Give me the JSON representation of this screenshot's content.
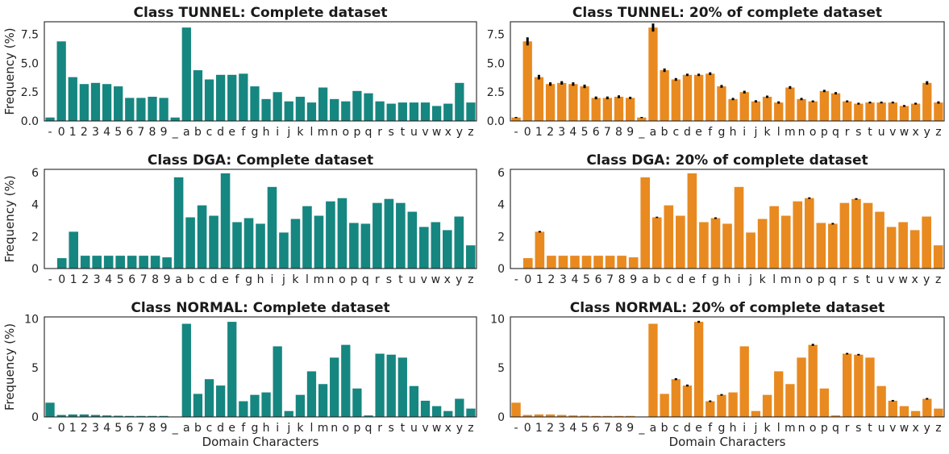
{
  "colors": {
    "complete": "#168680",
    "sample": "#e88a20",
    "error": "#000000"
  },
  "chart_data": [
    {
      "type": "bar",
      "title": "Class TUNNEL: Complete dataset",
      "ylabel": "Frequency (%)",
      "xlabel": "",
      "categories": [
        "-",
        "0",
        "1",
        "2",
        "3",
        "4",
        "5",
        "6",
        "7",
        "8",
        "9",
        "_",
        "a",
        "b",
        "c",
        "d",
        "e",
        "f",
        "g",
        "h",
        "i",
        "j",
        "k",
        "l",
        "m",
        "n",
        "o",
        "p",
        "q",
        "r",
        "s",
        "t",
        "u",
        "v",
        "w",
        "x",
        "y",
        "z"
      ],
      "values": [
        0.3,
        6.9,
        3.8,
        3.2,
        3.3,
        3.2,
        3.0,
        2.0,
        2.0,
        2.1,
        2.0,
        0.3,
        8.1,
        4.4,
        3.6,
        4.0,
        4.0,
        4.1,
        3.0,
        1.9,
        2.5,
        1.7,
        2.1,
        1.6,
        2.9,
        1.9,
        1.7,
        2.6,
        2.4,
        1.7,
        1.5,
        1.6,
        1.6,
        1.6,
        1.3,
        1.5,
        3.3,
        1.6
      ],
      "yticks": [
        "0.0",
        "2.5",
        "5.0",
        "7.5"
      ],
      "ytick_values": [
        0,
        2.5,
        5,
        7.5
      ],
      "ylim": [
        0,
        8.6
      ],
      "error_bars": false
    },
    {
      "type": "bar",
      "title": "Class TUNNEL: 20% of complete dataset",
      "ylabel": "",
      "xlabel": "",
      "categories": [
        "-",
        "0",
        "1",
        "2",
        "3",
        "4",
        "5",
        "6",
        "7",
        "8",
        "9",
        "_",
        "a",
        "b",
        "c",
        "d",
        "e",
        "f",
        "g",
        "h",
        "i",
        "j",
        "k",
        "l",
        "m",
        "n",
        "o",
        "p",
        "q",
        "r",
        "s",
        "t",
        "u",
        "v",
        "w",
        "x",
        "y",
        "z"
      ],
      "values": [
        0.3,
        6.9,
        3.8,
        3.2,
        3.3,
        3.2,
        3.0,
        2.0,
        2.0,
        2.1,
        2.0,
        0.3,
        8.1,
        4.4,
        3.6,
        4.0,
        4.0,
        4.1,
        3.0,
        1.9,
        2.5,
        1.7,
        2.1,
        1.6,
        2.9,
        1.9,
        1.7,
        2.6,
        2.4,
        1.7,
        1.5,
        1.6,
        1.6,
        1.6,
        1.3,
        1.5,
        3.3,
        1.6
      ],
      "errors": [
        0.05,
        0.35,
        0.2,
        0.15,
        0.15,
        0.15,
        0.15,
        0.12,
        0.12,
        0.12,
        0.1,
        0.05,
        0.35,
        0.15,
        0.12,
        0.1,
        0.1,
        0.12,
        0.12,
        0.1,
        0.12,
        0.1,
        0.1,
        0.1,
        0.12,
        0.1,
        0.08,
        0.1,
        0.1,
        0.08,
        0.08,
        0.08,
        0.08,
        0.08,
        0.08,
        0.08,
        0.15,
        0.1
      ],
      "yticks": [
        "0.0",
        "2.5",
        "5.0",
        "7.5"
      ],
      "ytick_values": [
        0,
        2.5,
        5,
        7.5
      ],
      "ylim": [
        0,
        8.6
      ],
      "error_bars": true
    },
    {
      "type": "bar",
      "title": "Class DGA: Complete dataset",
      "ylabel": "Frequency (%)",
      "xlabel": "",
      "categories": [
        "-",
        "0",
        "1",
        "2",
        "3",
        "4",
        "5",
        "6",
        "7",
        "8",
        "9",
        "a",
        "b",
        "c",
        "d",
        "e",
        "f",
        "g",
        "h",
        "i",
        "j",
        "k",
        "l",
        "m",
        "n",
        "o",
        "p",
        "q",
        "r",
        "s",
        "t",
        "u",
        "v",
        "w",
        "x",
        "y",
        "z"
      ],
      "values": [
        0,
        0.65,
        2.3,
        0.8,
        0.8,
        0.8,
        0.8,
        0.8,
        0.8,
        0.8,
        0.7,
        5.7,
        3.2,
        3.95,
        3.3,
        5.95,
        2.9,
        3.15,
        2.8,
        5.1,
        2.25,
        3.1,
        3.9,
        3.3,
        4.2,
        4.4,
        2.85,
        2.8,
        4.1,
        4.35,
        4.1,
        3.55,
        2.6,
        2.9,
        2.4,
        3.25,
        1.45
      ],
      "yticks": [
        "0",
        "2",
        "4",
        "6"
      ],
      "ytick_values": [
        0,
        2,
        4,
        6
      ],
      "ylim": [
        0,
        6.2
      ],
      "error_bars": false
    },
    {
      "type": "bar",
      "title": "Class DGA: 20% of complete dataset",
      "ylabel": "",
      "xlabel": "",
      "categories": [
        "-",
        "0",
        "1",
        "2",
        "3",
        "4",
        "5",
        "6",
        "7",
        "8",
        "9",
        "a",
        "b",
        "c",
        "d",
        "e",
        "f",
        "g",
        "h",
        "i",
        "j",
        "k",
        "l",
        "m",
        "n",
        "o",
        "p",
        "q",
        "r",
        "s",
        "t",
        "u",
        "v",
        "w",
        "x",
        "y",
        "z"
      ],
      "values": [
        0,
        0.65,
        2.3,
        0.8,
        0.8,
        0.8,
        0.8,
        0.8,
        0.8,
        0.8,
        0.7,
        5.7,
        3.2,
        3.95,
        3.3,
        5.95,
        2.9,
        3.15,
        2.8,
        5.1,
        2.25,
        3.1,
        3.9,
        3.3,
        4.2,
        4.4,
        2.85,
        2.8,
        4.1,
        4.35,
        4.1,
        3.55,
        2.6,
        2.9,
        2.4,
        3.25,
        1.45
      ],
      "errors": [
        0,
        0,
        0.05,
        0,
        0,
        0,
        0,
        0,
        0,
        0,
        0,
        0,
        0.04,
        0,
        0,
        0,
        0,
        0.05,
        0,
        0,
        0,
        0,
        0,
        0,
        0,
        0.05,
        0,
        0.05,
        0,
        0.05,
        0,
        0,
        0,
        0,
        0,
        0,
        0
      ],
      "yticks": [
        "0",
        "2",
        "4",
        "6"
      ],
      "ytick_values": [
        0,
        2,
        4,
        6
      ],
      "ylim": [
        0,
        6.2
      ],
      "error_bars": true
    },
    {
      "type": "bar",
      "title": "Class NORMAL: Complete dataset",
      "ylabel": "Frequency (%)",
      "xlabel": "Domain Characters",
      "categories": [
        "-",
        "0",
        "1",
        "2",
        "3",
        "4",
        "5",
        "6",
        "7",
        "8",
        "9",
        "_",
        "a",
        "b",
        "c",
        "d",
        "e",
        "f",
        "g",
        "h",
        "i",
        "j",
        "k",
        "l",
        "m",
        "n",
        "o",
        "p",
        "q",
        "r",
        "s",
        "t",
        "u",
        "v",
        "w",
        "x",
        "y",
        "z"
      ],
      "values": [
        1.45,
        0.2,
        0.25,
        0.25,
        0.2,
        0.15,
        0.12,
        0.1,
        0.1,
        0.1,
        0.1,
        0,
        9.5,
        2.35,
        3.85,
        3.2,
        9.7,
        1.6,
        2.25,
        2.5,
        7.2,
        0.6,
        2.25,
        4.65,
        3.35,
        6.05,
        7.35,
        2.9,
        0.15,
        6.45,
        6.35,
        6.05,
        3.15,
        1.65,
        1.1,
        0.6,
        1.85,
        0.85
      ],
      "yticks": [
        "0",
        "5",
        "10"
      ],
      "ytick_values": [
        0,
        5,
        10
      ],
      "ylim": [
        0,
        10.2
      ],
      "error_bars": false
    },
    {
      "type": "bar",
      "title": "Class NORMAL: 20% of complete dataset",
      "ylabel": "",
      "xlabel": "Domain Characters",
      "categories": [
        "-",
        "0",
        "1",
        "2",
        "3",
        "4",
        "5",
        "6",
        "7",
        "8",
        "9",
        "_",
        "a",
        "b",
        "c",
        "d",
        "e",
        "f",
        "g",
        "h",
        "i",
        "j",
        "k",
        "l",
        "m",
        "n",
        "o",
        "p",
        "q",
        "r",
        "s",
        "t",
        "u",
        "v",
        "w",
        "x",
        "y",
        "z"
      ],
      "values": [
        1.45,
        0.2,
        0.25,
        0.25,
        0.2,
        0.15,
        0.12,
        0.1,
        0.1,
        0.1,
        0.1,
        0,
        9.5,
        2.35,
        3.85,
        3.2,
        9.7,
        1.6,
        2.25,
        2.5,
        7.2,
        0.6,
        2.25,
        4.65,
        3.35,
        6.05,
        7.35,
        2.9,
        0.15,
        6.45,
        6.35,
        6.05,
        3.15,
        1.65,
        1.1,
        0.6,
        1.85,
        0.85
      ],
      "errors": [
        0,
        0,
        0,
        0,
        0,
        0,
        0,
        0,
        0,
        0,
        0,
        0,
        0,
        0,
        0.1,
        0.1,
        0.1,
        0.08,
        0.08,
        0,
        0,
        0,
        0,
        0,
        0,
        0,
        0.1,
        0,
        0,
        0.08,
        0.08,
        0,
        0,
        0.08,
        0,
        0,
        0.08,
        0
      ],
      "yticks": [
        "0",
        "5",
        "10"
      ],
      "ytick_values": [
        0,
        5,
        10
      ],
      "ylim": [
        0,
        10.2
      ],
      "error_bars": true
    }
  ]
}
